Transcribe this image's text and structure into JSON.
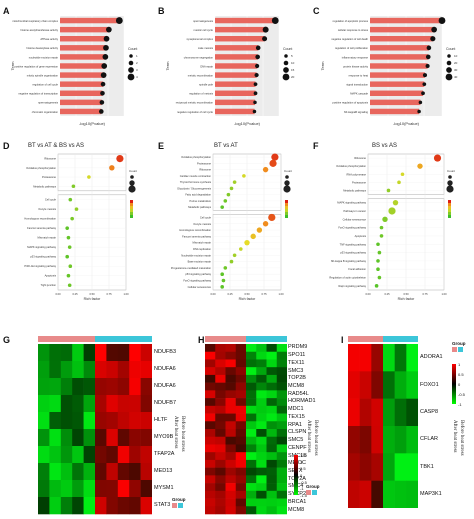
{
  "panels": {
    "A": {
      "label": "A"
    },
    "B": {
      "label": "B"
    },
    "C": {
      "label": "C"
    },
    "D": {
      "label": "D",
      "title": "BT vs AT & BS vs AS"
    },
    "E": {
      "label": "E",
      "title": "BT vs AT"
    },
    "F": {
      "label": "F",
      "title": "BS vs AS"
    },
    "G": {
      "label": "G"
    },
    "H": {
      "label": "H"
    },
    "I": {
      "label": "I"
    }
  },
  "chart_data": [
    {
      "panel": "A",
      "type": "bar",
      "orientation": "horizontal",
      "xlabel": "-log10(Pvalue)",
      "ylabel": "Term",
      "legend_title": "Count",
      "categories": [
        "mitochondrial respiratory chain complex",
        "histone acetyltransferase activity",
        "ATPase activity",
        "histone deacetylase activity",
        "nucleotide excision repair",
        "positive regulation of gene expression",
        "mitotic spindle organization",
        "regulation of cell cycle",
        "negative regulation of transcription",
        "spermatogenesis",
        "chromatin organization"
      ],
      "values": [
        10.2,
        8.4,
        8.0,
        7.9,
        7.8,
        7.6,
        7.5,
        7.4,
        7.3,
        7.2,
        7.1
      ],
      "counts": [
        4,
        3,
        3,
        3,
        3,
        3,
        3,
        2,
        2,
        2,
        2
      ],
      "bar_color": "#e8665d"
    },
    {
      "panel": "B",
      "type": "bar",
      "orientation": "horizontal",
      "xlabel": "-log10(Pvalue)",
      "ylabel": "Term",
      "legend_title": "Count",
      "categories": [
        "spermatogenesis",
        "meiotic cell cycle",
        "synaptonemal complex",
        "male meiosis",
        "chromosome segregation",
        "DNA repair",
        "meiotic recombination",
        "spindle pole",
        "regulation of meiosis",
        "reciprocal meiotic recombination",
        "negative regulation of cell cycle"
      ],
      "values": [
        11.3,
        9.5,
        9.3,
        8.1,
        8.0,
        7.9,
        7.8,
        7.6,
        7.6,
        7.5,
        7.4
      ],
      "counts": [
        20,
        16,
        12,
        10,
        10,
        8,
        8,
        6,
        6,
        5,
        5
      ],
      "bar_color": "#e8665d"
    },
    {
      "panel": "C",
      "type": "bar",
      "orientation": "horizontal",
      "xlabel": "-log10(Pvalue)",
      "ylabel": "Term",
      "legend_title": "Count",
      "categories": [
        "regulation of apoptotic process",
        "cellular response to stress",
        "negative regulation of cell death",
        "regulation of cell proliferation",
        "inflammatory response",
        "protein kinase activity",
        "response to heat",
        "signal transduction",
        "MAPK cascade",
        "positive regulation of apoptosis",
        "NF-kappaB signaling"
      ],
      "values": [
        11.0,
        9.8,
        9.6,
        9.0,
        8.9,
        8.8,
        8.4,
        8.3,
        8.1,
        7.7,
        7.5
      ],
      "counts": [
        40,
        30,
        25,
        20,
        20,
        15,
        15,
        12,
        12,
        10,
        10
      ],
      "bar_color": "#e8665d"
    },
    {
      "panel": "D",
      "type": "scatter",
      "xlabel": "Rich factor",
      "legend_title": "Count",
      "categories": [
        "Ribosome",
        "Oxidative phosphorylation",
        "Proteasome",
        "Metabolic pathways",
        "Cell cycle",
        "Oocyte meiosis",
        "Homologous recombination",
        "Fanconi anemia pathway",
        "Mismatch repair",
        "MAPK signaling pathway",
        "p53 signaling pathway",
        "PI3K-Akt signaling pathway",
        "Apoptosis",
        "Tight junction"
      ],
      "x": [
        0.95,
        0.82,
        0.45,
        0.2,
        0.15,
        0.25,
        0.18,
        0.1,
        0.12,
        0.14,
        0.1,
        0.15,
        0.12,
        0.14
      ],
      "sizes": [
        3,
        2,
        1,
        1,
        1,
        1,
        1,
        1,
        1,
        1,
        1,
        1,
        1,
        1
      ]
    },
    {
      "panel": "E",
      "type": "scatter",
      "xlabel": "Rich factor",
      "legend_title": "Count",
      "categories": [
        "Oxidative phosphorylation",
        "Proteasome",
        "Ribosome",
        "Cardiac muscle contraction",
        "Thyroid hormone synthesis",
        "Glycolysis / Gluconeogenesis",
        "Fatty acid degradation",
        "Purine metabolism",
        "Metabolic pathways",
        "Cell cycle",
        "Oocyte meiosis",
        "Homologous recombination",
        "Fanconi anemia pathway",
        "Mismatch repair",
        "DNA replication",
        "Nucleotide excision repair",
        "Base excision repair",
        "Progesterone-mediated maturation",
        "p53 signaling pathway",
        "FoxO signaling pathway",
        "Cellular senescence"
      ],
      "x": [
        0.95,
        0.92,
        0.8,
        0.45,
        0.3,
        0.25,
        0.2,
        0.15,
        0.1,
        0.9,
        0.8,
        0.7,
        0.6,
        0.5,
        0.4,
        0.3,
        0.25,
        0.15,
        0.1,
        0.12,
        0.1
      ],
      "sizes": [
        3,
        3,
        2,
        1,
        1,
        1,
        1,
        1,
        1,
        3,
        2,
        2,
        2,
        2,
        1,
        1,
        1,
        1,
        1,
        1,
        1
      ]
    },
    {
      "panel": "F",
      "type": "scatter",
      "xlabel": "Rich factor",
      "legend_title": "Count",
      "categories": [
        "Ribosome",
        "Oxidative phosphorylation",
        "RNA polymerase",
        "Proteasome",
        "Metabolic pathways",
        "MAPK signaling pathway",
        "Pathways in cancer",
        "Cellular senescence",
        "FoxO signaling pathway",
        "Apoptosis",
        "TNF signaling pathway",
        "p53 signaling pathway",
        "NF-kappa B signaling pathway",
        "Focal adhesion",
        "Regulation of actin cytoskeleton",
        "Rap1 signaling pathway"
      ],
      "x": [
        0.95,
        0.7,
        0.45,
        0.4,
        0.25,
        0.35,
        0.3,
        0.2,
        0.15,
        0.15,
        0.1,
        0.12,
        0.1,
        0.1,
        0.12,
        0.08
      ],
      "sizes": [
        3,
        2,
        1,
        1,
        1,
        2,
        3,
        2,
        1,
        1,
        1,
        1,
        1,
        1,
        1,
        1
      ]
    },
    {
      "panel": "G",
      "type": "heatmap",
      "genes": [
        "NDUFB3",
        "NDUFA6",
        "NDUFA6",
        "NDUFB7",
        "HLTF",
        "MYO9B",
        "TFAP2A",
        "MED13",
        "MYSM1",
        "STAT3"
      ],
      "groups": [
        "After heat stress",
        "Before heat stress"
      ],
      "group_colors": [
        "#e88a8a",
        "#3cc6d9"
      ],
      "legend_title": "Group"
    },
    {
      "panel": "H",
      "type": "heatmap",
      "genes": [
        "PRDM9",
        "SPO11",
        "TEX11",
        "SMC3",
        "TOP2B",
        "MCM8",
        "RAD54L",
        "HORMAD1",
        "MDC1",
        "TEX15",
        "RPA1",
        "CLSPN",
        "SMC5",
        "CENPF",
        "SMC1B",
        "MEIOC",
        "SETX",
        "TOP2A",
        "SMC4",
        "SYCP2",
        "BRCA1",
        "MCM8"
      ],
      "groups": [
        "After heat stress",
        "Before heat stress"
      ],
      "group_colors": [
        "#e88a8a",
        "#3cc6d9"
      ],
      "legend_title": "Group",
      "scale": [
        "1.5",
        "1",
        "0.5",
        "0",
        "-0.5",
        "-1",
        "-1.5"
      ]
    },
    {
      "panel": "I",
      "type": "heatmap",
      "genes": [
        "ADORA1",
        "FOXO1",
        "CASP8",
        "CFLAR",
        "TBK1",
        "MAP3K1"
      ],
      "groups": [
        "After heat stress",
        "Before heat stress"
      ],
      "group_colors": [
        "#e88a8a",
        "#3cc6d9"
      ],
      "legend_title": "Group",
      "scale": [
        "1",
        "0.5",
        "0",
        "-0.5",
        "-1"
      ]
    }
  ]
}
